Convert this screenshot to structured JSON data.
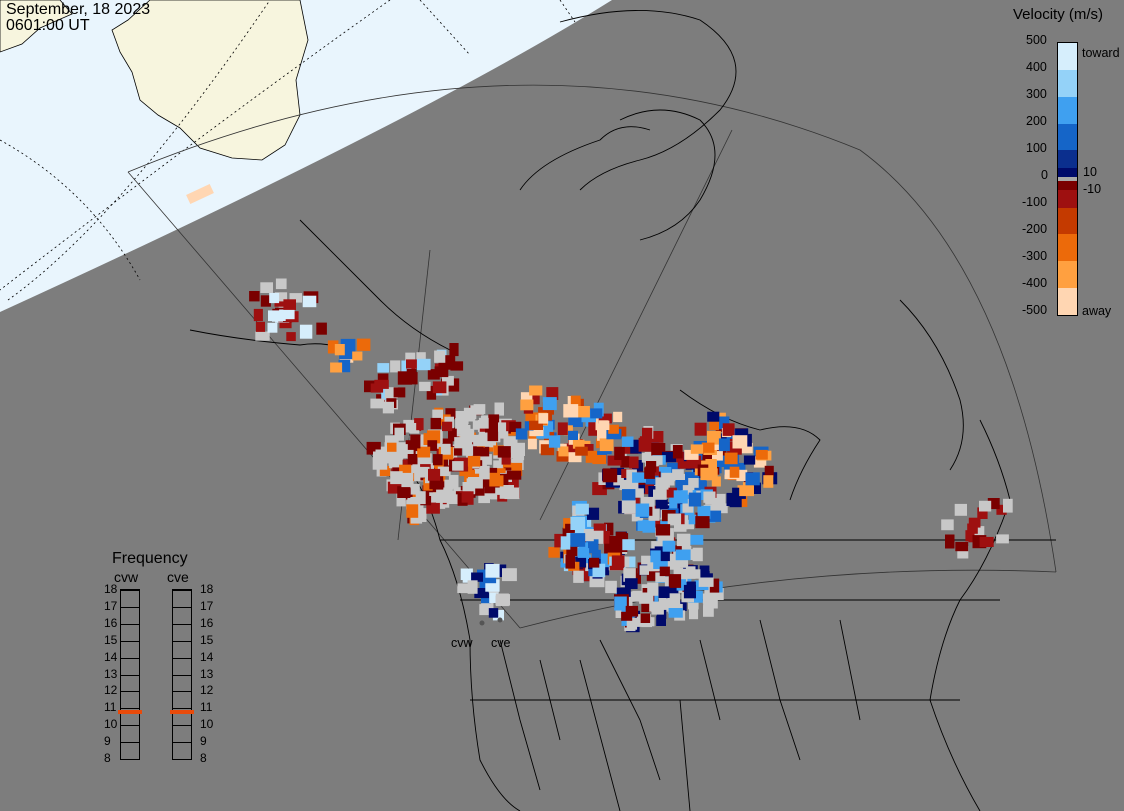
{
  "header": {
    "date": "September, 18 2023",
    "time": "0601:00 UT"
  },
  "colorbar": {
    "title": "Velocity (m/s)",
    "ticks": [
      "500",
      "400",
      "300",
      "200",
      "100",
      "10",
      "0",
      "-10",
      "-100",
      "-200",
      "-300",
      "-400",
      "-500"
    ],
    "toward_label": "toward",
    "away_label": "away",
    "colors": [
      "#d6eefc",
      "#94d2f8",
      "#3fa0f0",
      "#1565c8",
      "#0b2f8e",
      "#000a6a",
      "#a8a8a8",
      "#7a0000",
      "#9e1010",
      "#c43a00",
      "#ec6a0a",
      "#ffa040",
      "#ffd6b2"
    ]
  },
  "frequency_panel": {
    "title": "Frequency",
    "radars": [
      {
        "name": "cvw",
        "selected_mhz": 10.8
      },
      {
        "name": "cve",
        "selected_mhz": 10.8
      }
    ],
    "ticks": [
      "18",
      "17",
      "16",
      "15",
      "14",
      "13",
      "12",
      "11",
      "10",
      "9",
      "8"
    ],
    "marker_color": "#e84a0a"
  },
  "map": {
    "site_labels": [
      "cvw",
      "cve"
    ],
    "daylight_color": "#e9f5fd",
    "land_daylight_color": "#f7f5de",
    "night_color": "#7d7d7d",
    "ground_scatter_color": "#c8c8c8"
  }
}
